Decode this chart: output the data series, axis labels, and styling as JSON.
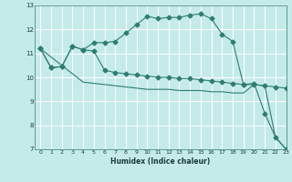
{
  "xlabel": "Humidex (Indice chaleur)",
  "xlim": [
    -0.5,
    23
  ],
  "ylim": [
    7,
    13
  ],
  "xticks": [
    0,
    1,
    2,
    3,
    4,
    5,
    6,
    7,
    8,
    9,
    10,
    11,
    12,
    13,
    14,
    15,
    16,
    17,
    18,
    19,
    20,
    21,
    22,
    23
  ],
  "yticks": [
    7,
    8,
    9,
    10,
    11,
    12,
    13
  ],
  "background_color": "#c5eaea",
  "grid_color": "#ffffff",
  "line_color": "#2e7d70",
  "series": [
    {
      "x": [
        0,
        1,
        2,
        3,
        4,
        5,
        6,
        7,
        8,
        9,
        10,
        11,
        12,
        13,
        14,
        15,
        16,
        17,
        18,
        19,
        20,
        21,
        22,
        23
      ],
      "y": [
        11.2,
        10.4,
        10.45,
        11.3,
        11.15,
        11.45,
        11.45,
        11.5,
        11.85,
        12.2,
        12.55,
        12.45,
        12.5,
        12.5,
        12.6,
        12.65,
        12.45,
        11.8,
        11.5,
        9.7,
        9.75,
        8.5,
        7.5,
        7.0
      ],
      "marker": "D",
      "marker_size": 2.5
    },
    {
      "x": [
        0,
        1,
        2,
        3,
        4,
        5,
        6,
        7,
        8,
        9,
        10,
        11,
        12,
        13,
        14,
        15,
        16,
        17,
        18,
        19,
        20,
        21,
        22,
        23
      ],
      "y": [
        11.2,
        10.4,
        10.45,
        11.3,
        11.15,
        11.1,
        10.3,
        10.2,
        10.15,
        10.1,
        10.05,
        10.0,
        10.0,
        9.95,
        9.95,
        9.9,
        9.85,
        9.8,
        9.75,
        9.7,
        9.7,
        9.65,
        9.6,
        9.55
      ],
      "marker": "D",
      "marker_size": 2.5
    },
    {
      "x": [
        0,
        1,
        2,
        3,
        4,
        5,
        6,
        7,
        8,
        9,
        10,
        11,
        12,
        13,
        14,
        15,
        16,
        17,
        18,
        19,
        20,
        21,
        22,
        23
      ],
      "y": [
        11.2,
        10.85,
        10.5,
        10.15,
        9.8,
        9.75,
        9.7,
        9.65,
        9.6,
        9.55,
        9.5,
        9.5,
        9.5,
        9.45,
        9.45,
        9.45,
        9.4,
        9.4,
        9.35,
        9.35,
        9.7,
        9.65,
        7.5,
        7.0
      ],
      "marker": null,
      "marker_size": 0
    }
  ]
}
